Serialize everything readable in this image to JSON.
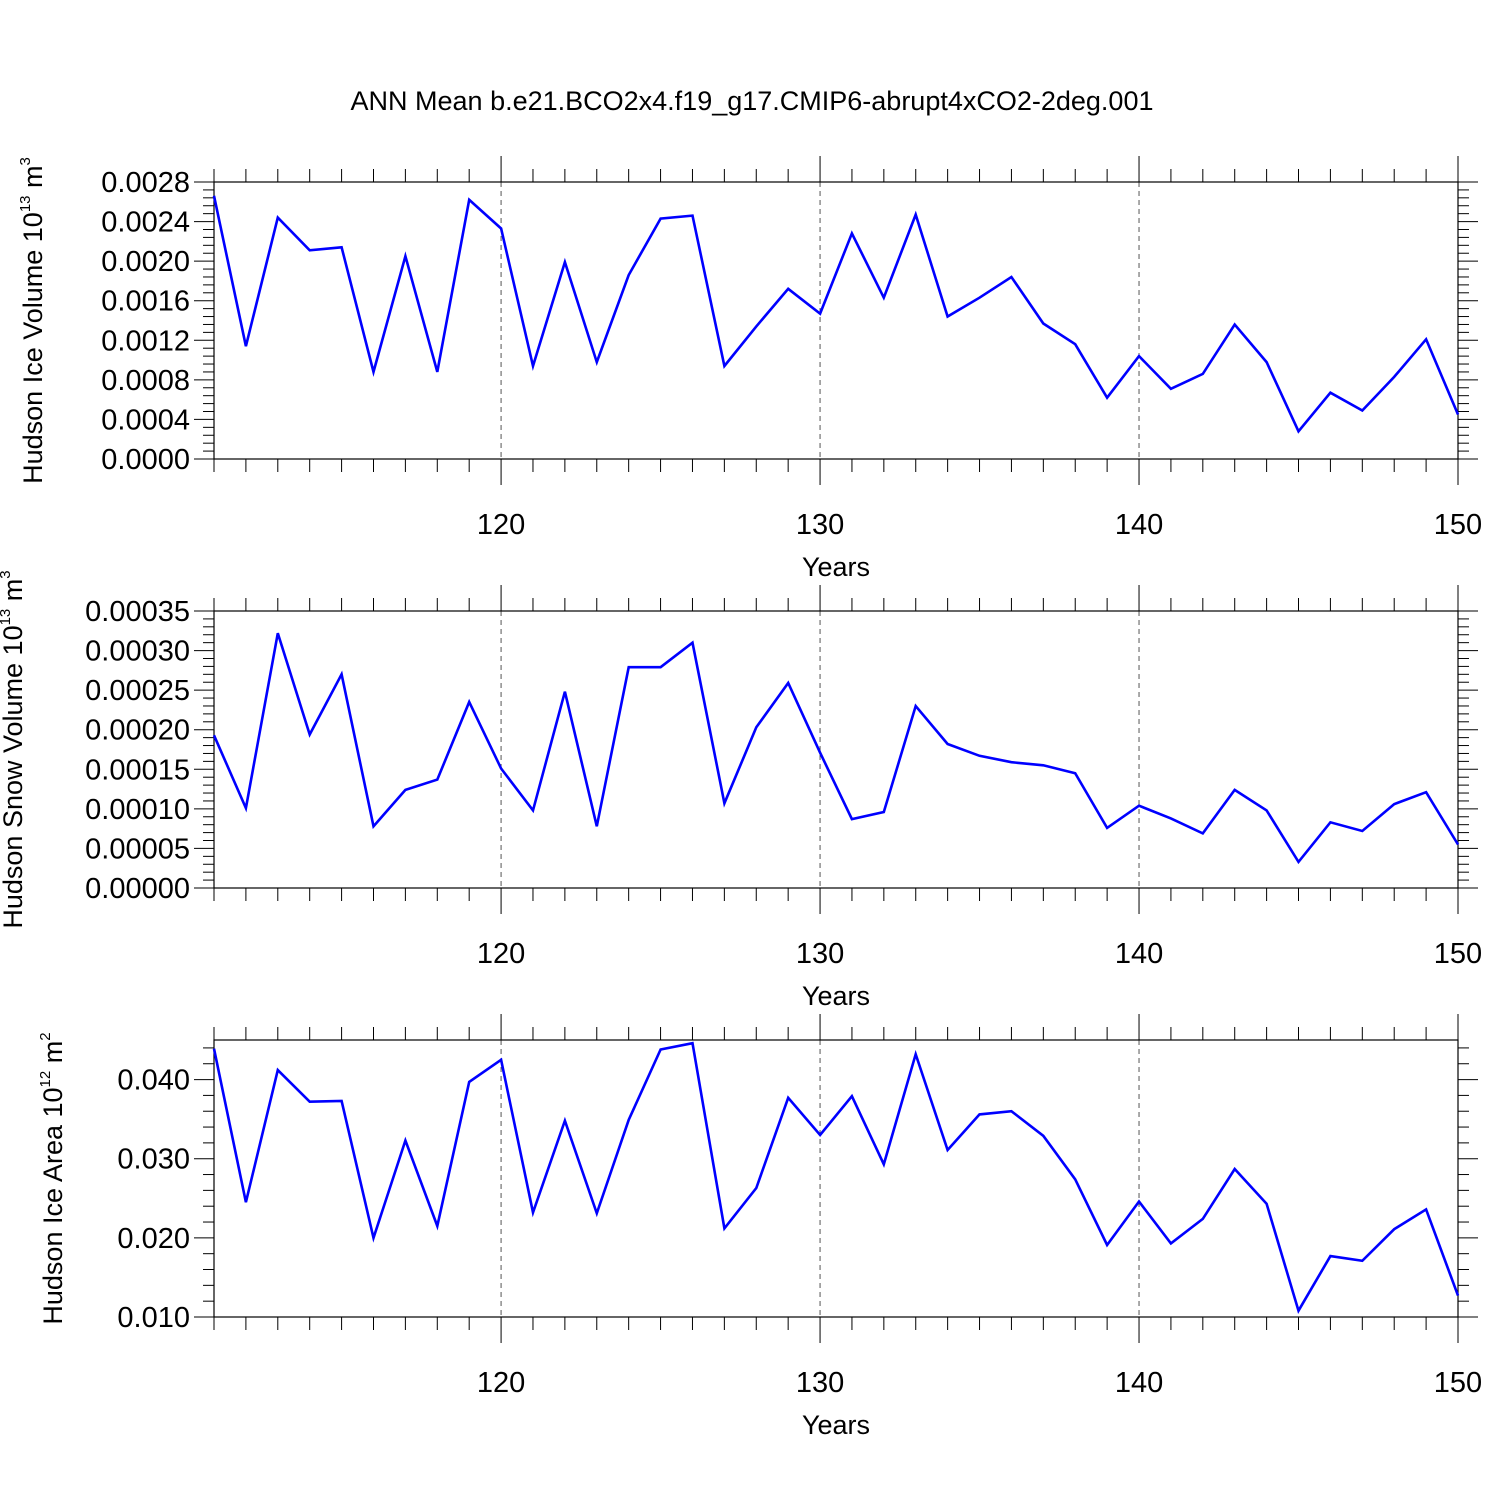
{
  "figure": {
    "title": "ANN Mean b.e21.BCO2x4.f19_g17.CMIP6-abrupt4xCO2-2deg.001"
  },
  "chart_data": [
    {
      "type": "line",
      "xlabel": "Years",
      "ylabel": {
        "base": "Hudson Ice Volume 10",
        "exp1": "13",
        "mid": " m",
        "exp2": "3"
      },
      "xlim": [
        111,
        150
      ],
      "ylim": [
        0,
        0.0028
      ],
      "xticks": [
        120,
        130,
        140,
        150
      ],
      "xtick_labels": [
        "120",
        "130",
        "140",
        "150"
      ],
      "yticks": [
        0,
        0.0004,
        0.0008,
        0.0012,
        0.0016,
        0.002,
        0.0024,
        0.0028
      ],
      "ytick_labels": [
        "0.0000",
        "0.0004",
        "0.0008",
        "0.0012",
        "0.0016",
        "0.0020",
        "0.0024",
        "0.0028"
      ],
      "grid": "vertical dashed at major x ticks",
      "line_color": "#0000ff",
      "x": [
        111,
        112,
        113,
        114,
        115,
        116,
        117,
        118,
        119,
        120,
        121,
        122,
        123,
        124,
        125,
        126,
        127,
        128,
        129,
        130,
        131,
        132,
        133,
        134,
        135,
        136,
        137,
        138,
        139,
        140,
        141,
        142,
        143,
        144,
        145,
        146,
        147,
        148,
        149,
        150
      ],
      "values": [
        0.00266,
        0.00114,
        0.00244,
        0.00211,
        0.00214,
        0.00088,
        0.00205,
        0.00088,
        0.00262,
        0.00233,
        0.00094,
        0.00199,
        0.00098,
        0.00186,
        0.00243,
        0.00246,
        0.00094,
        0.00134,
        0.00172,
        0.00147,
        0.00228,
        0.00163,
        0.00247,
        0.00144,
        0.00163,
        0.00184,
        0.00137,
        0.00116,
        0.00062,
        0.00104,
        0.00071,
        0.00086,
        0.00136,
        0.00098,
        0.00028,
        0.00067,
        0.00049,
        0.00083,
        0.00121,
        0.00045
      ]
    },
    {
      "type": "line",
      "xlabel": "Years",
      "ylabel": {
        "base": "Hudson Snow Volume 10",
        "exp1": "13",
        "mid": " m",
        "exp2": "3"
      },
      "xlim": [
        111,
        150
      ],
      "ylim": [
        0,
        0.00035
      ],
      "xticks": [
        120,
        130,
        140,
        150
      ],
      "xtick_labels": [
        "120",
        "130",
        "140",
        "150"
      ],
      "yticks": [
        0,
        5e-05,
        0.0001,
        0.00015,
        0.0002,
        0.00025,
        0.0003,
        0.00035
      ],
      "ytick_labels": [
        "0.00000",
        "0.00005",
        "0.00010",
        "0.00015",
        "0.00020",
        "0.00025",
        "0.00030",
        "0.00035"
      ],
      "grid": "vertical dashed at major x ticks",
      "line_color": "#0000ff",
      "x": [
        111,
        112,
        113,
        114,
        115,
        116,
        117,
        118,
        119,
        120,
        121,
        122,
        123,
        124,
        125,
        126,
        127,
        128,
        129,
        130,
        131,
        132,
        133,
        134,
        135,
        136,
        137,
        138,
        139,
        140,
        141,
        142,
        143,
        144,
        145,
        146,
        147,
        148,
        149,
        150
      ],
      "values": [
        0.000193,
        0.000101,
        0.000322,
        0.000194,
        0.00027,
        7.8e-05,
        0.000124,
        0.000137,
        0.000235,
        0.000151,
        9.8e-05,
        0.000248,
        7.8e-05,
        0.000279,
        0.000279,
        0.00031,
        0.000107,
        0.000203,
        0.000259,
        0.000171,
        8.7e-05,
        9.6e-05,
        0.00023,
        0.000182,
        0.000167,
        0.000159,
        0.000155,
        0.000145,
        7.6e-05,
        0.000104,
        8.8e-05,
        6.9e-05,
        0.000124,
        9.8e-05,
        3.3e-05,
        8.3e-05,
        7.2e-05,
        0.000106,
        0.000121,
        5.5e-05
      ]
    },
    {
      "type": "line",
      "xlabel": "Years",
      "ylabel": {
        "base": "Hudson Ice Area 10",
        "exp1": "12",
        "mid": " m",
        "exp2": "2"
      },
      "xlim": [
        111,
        150
      ],
      "ylim": [
        0.01,
        0.045
      ],
      "xticks": [
        120,
        130,
        140,
        150
      ],
      "xtick_labels": [
        "120",
        "130",
        "140",
        "150"
      ],
      "yticks": [
        0.01,
        0.02,
        0.03,
        0.04
      ],
      "ytick_labels": [
        "0.010",
        "0.020",
        "0.030",
        "0.040"
      ],
      "grid": "vertical dashed at major x ticks",
      "line_color": "#0000ff",
      "x": [
        111,
        112,
        113,
        114,
        115,
        116,
        117,
        118,
        119,
        120,
        121,
        122,
        123,
        124,
        125,
        126,
        127,
        128,
        129,
        130,
        131,
        132,
        133,
        134,
        135,
        136,
        137,
        138,
        139,
        140,
        141,
        142,
        143,
        144,
        145,
        146,
        147,
        148,
        149,
        150
      ],
      "values": [
        0.0439,
        0.0245,
        0.0412,
        0.0372,
        0.0373,
        0.02,
        0.0323,
        0.0215,
        0.0397,
        0.0425,
        0.0232,
        0.0348,
        0.0231,
        0.0349,
        0.0438,
        0.0446,
        0.0212,
        0.0263,
        0.0377,
        0.033,
        0.0379,
        0.0293,
        0.0432,
        0.0311,
        0.0356,
        0.036,
        0.0329,
        0.0274,
        0.0191,
        0.0246,
        0.0193,
        0.0224,
        0.0287,
        0.0243,
        0.0108,
        0.0177,
        0.0171,
        0.0211,
        0.0236,
        0.0127
      ]
    }
  ]
}
